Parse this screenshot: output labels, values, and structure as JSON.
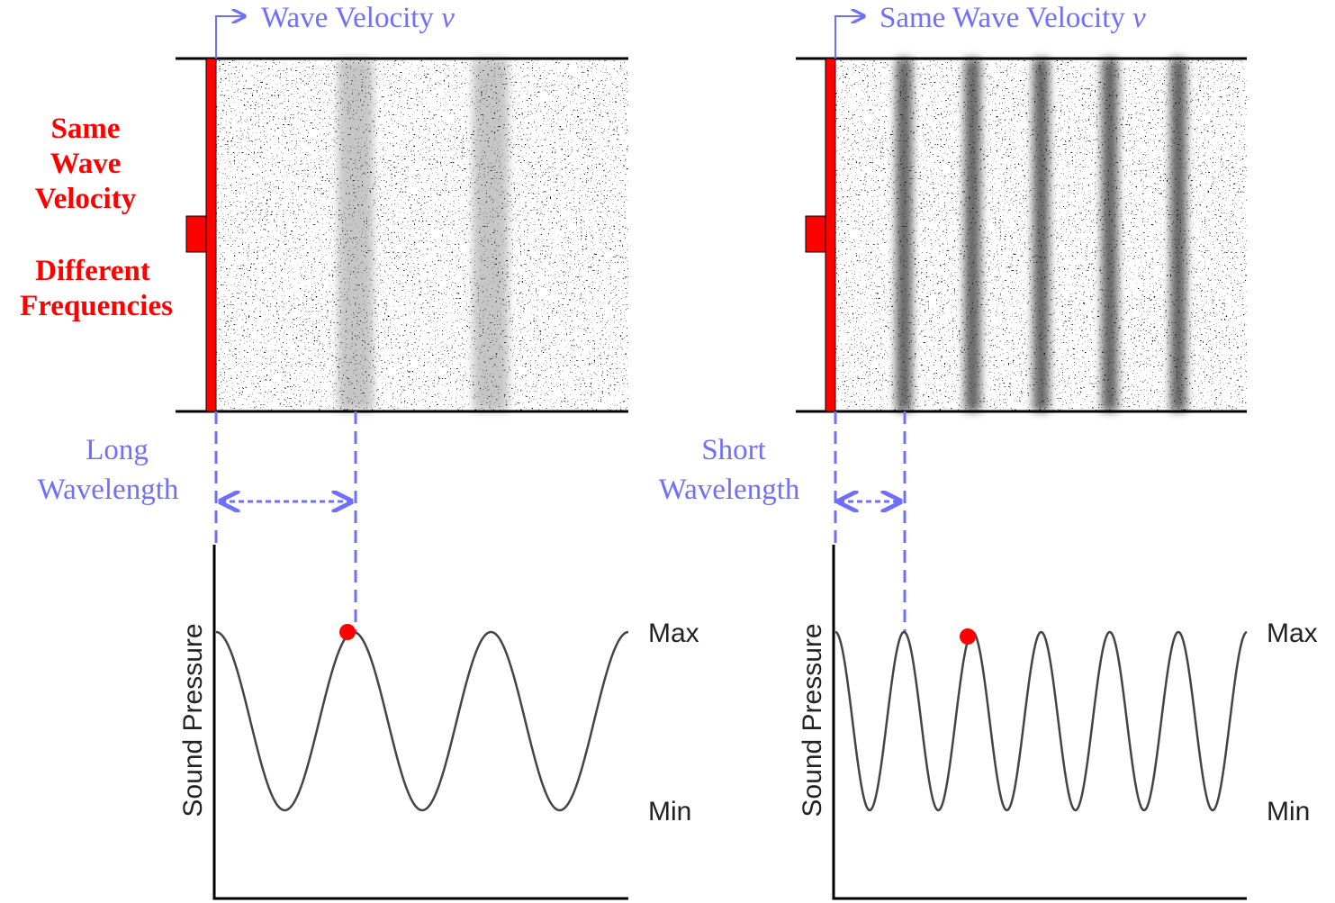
{
  "side_note": {
    "velocity": [
      "Same",
      "Wave",
      "Velocity"
    ],
    "frequency": [
      "Different",
      "Frequencies"
    ]
  },
  "panels": [
    {
      "velocity_label": "Wave Velocity",
      "velocity_symbol": "ν",
      "wavelength_label": [
        "Long",
        "Wavelength"
      ],
      "y_axis_label": "Sound Pressure",
      "max_label": "Max",
      "min_label": "Min"
    },
    {
      "velocity_label": "Same Wave Velocity",
      "velocity_symbol": "ν",
      "wavelength_label": [
        "Short",
        "Wavelength"
      ],
      "y_axis_label": "Sound Pressure",
      "max_label": "Max",
      "min_label": "Min"
    }
  ]
}
